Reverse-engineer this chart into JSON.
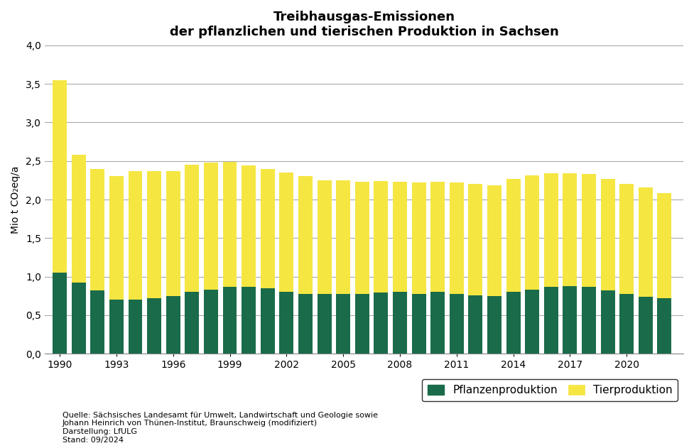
{
  "title_line1": "Treibhausgas-Emissionen",
  "title_line2": "der pflanzlichen und tierischen Produktion in Sachsen",
  "ylabel": "Mio t CO₂eq/a",
  "years": [
    1990,
    1991,
    1992,
    1993,
    1994,
    1995,
    1996,
    1997,
    1998,
    1999,
    2000,
    2001,
    2002,
    2003,
    2004,
    2005,
    2006,
    2007,
    2008,
    2009,
    2010,
    2011,
    2012,
    2013,
    2014,
    2015,
    2016,
    2017,
    2018,
    2019,
    2020,
    2021,
    2022
  ],
  "pflanzen": [
    1.05,
    0.92,
    0.82,
    0.7,
    0.7,
    0.72,
    0.75,
    0.8,
    0.83,
    0.87,
    0.87,
    0.85,
    0.8,
    0.78,
    0.78,
    0.78,
    0.78,
    0.79,
    0.8,
    0.78,
    0.8,
    0.78,
    0.76,
    0.75,
    0.8,
    0.83,
    0.87,
    0.88,
    0.87,
    0.82,
    0.78,
    0.74,
    0.72
  ],
  "tier": [
    2.5,
    1.66,
    1.58,
    1.6,
    1.67,
    1.65,
    1.62,
    1.65,
    1.65,
    1.62,
    1.57,
    1.55,
    1.55,
    1.52,
    1.47,
    1.47,
    1.45,
    1.45,
    1.43,
    1.44,
    1.43,
    1.44,
    1.44,
    1.43,
    1.47,
    1.48,
    1.47,
    1.46,
    1.46,
    1.45,
    1.42,
    1.42,
    1.36
  ],
  "pflanzen_color": "#1a6b4a",
  "tier_color": "#f5e642",
  "background_color": "#ffffff",
  "ylim_max": 4.0,
  "yticks": [
    0.0,
    0.5,
    1.0,
    1.5,
    2.0,
    2.5,
    3.0,
    3.5,
    4.0
  ],
  "ytick_labels": [
    "0,0",
    "0,5",
    "1,0",
    "1,5",
    "2,0",
    "2,5",
    "3,0",
    "3,5",
    "4,0"
  ],
  "xtick_years": [
    1990,
    1993,
    1996,
    1999,
    2002,
    2005,
    2008,
    2011,
    2014,
    2017,
    2020
  ],
  "legend_pflanzen": "Pflanzenproduktion",
  "legend_tier": "Tierproduktion",
  "source_text": "Quelle: Sächsisches Landesamt für Umwelt, Landwirtschaft und Geologie sowie\nJohann Heinrich von Thünen-Institut, Braunschweig (modifiziert)\nDarstellung: LfULG\nStand: 09/2024",
  "title_fontsize": 13,
  "axis_fontsize": 10,
  "tick_fontsize": 10,
  "legend_fontsize": 11,
  "source_fontsize": 8,
  "bar_width": 0.75
}
